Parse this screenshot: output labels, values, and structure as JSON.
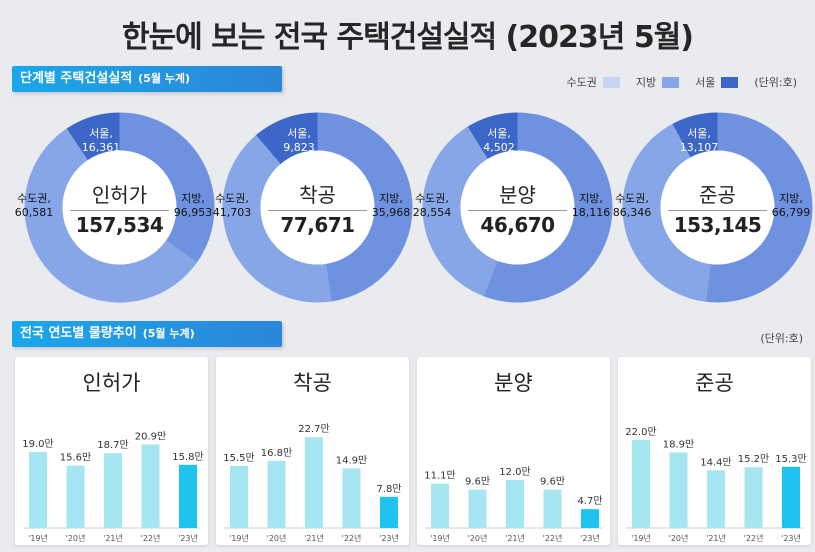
{
  "title": "한눈에 보는 전국 주택건설실적 (2023년 5월)",
  "section1": {
    "title": "단계별 주택건설실적",
    "sub": "(5월 누계)"
  },
  "legend": {
    "items": [
      "수도권",
      "지방",
      "서울"
    ],
    "unit": "(단위:호)"
  },
  "colors": {
    "capital": "#6f92e0",
    "local": "#86a6e8",
    "seoul": "#3d66c9",
    "bar": "#a6e6f2",
    "bar_latest": "#1fc3ef",
    "banner": "#1aa7ea"
  },
  "section2": {
    "title": "전국 연도별 물량추이",
    "sub": "(5월 누계)",
    "unit": "(단위:호)"
  },
  "chart_data": [
    {
      "type": "pie",
      "title": "인허가",
      "total": "157,534",
      "labels": [
        "서울,",
        "수도권,",
        "지방,"
      ],
      "values": [
        16361,
        60581,
        96953
      ],
      "value_labels": [
        "16,361",
        "60,581",
        "96,953"
      ]
    },
    {
      "type": "pie",
      "title": "착공",
      "total": "77,671",
      "labels": [
        "서울,",
        "수도권,",
        "지방,"
      ],
      "values": [
        9823,
        41703,
        35968
      ],
      "value_labels": [
        "9,823",
        "41,703",
        "35,968"
      ]
    },
    {
      "type": "pie",
      "title": "분양",
      "total": "46,670",
      "labels": [
        "서울,",
        "수도권,",
        "지방,"
      ],
      "values": [
        4502,
        28554,
        18116
      ],
      "value_labels": [
        "4,502",
        "28,554",
        "18,116"
      ]
    },
    {
      "type": "pie",
      "title": "준공",
      "total": "153,145",
      "labels": [
        "서울,",
        "수도권,",
        "지방,"
      ],
      "values": [
        13107,
        86346,
        66799
      ],
      "value_labels": [
        "13,107",
        "86,346",
        "66,799"
      ]
    },
    {
      "type": "bar",
      "title": "인허가",
      "categories": [
        "'19년",
        "'20년",
        "'21년",
        "'22년",
        "'23년"
      ],
      "values": [
        19.0,
        15.6,
        18.7,
        20.9,
        15.8
      ],
      "value_labels": [
        "19.0만",
        "15.6만",
        "18.7만",
        "20.9만",
        "15.8만"
      ]
    },
    {
      "type": "bar",
      "title": "착공",
      "categories": [
        "'19년",
        "'20년",
        "'21년",
        "'22년",
        "'23년"
      ],
      "values": [
        15.5,
        16.8,
        22.7,
        14.9,
        7.8
      ],
      "value_labels": [
        "15.5만",
        "16.8만",
        "22.7만",
        "14.9만",
        "7.8만"
      ]
    },
    {
      "type": "bar",
      "title": "분양",
      "categories": [
        "'19년",
        "'20년",
        "'21년",
        "'22년",
        "'23년"
      ],
      "values": [
        11.1,
        9.6,
        12.0,
        9.6,
        4.7
      ],
      "value_labels": [
        "11.1만",
        "9.6만",
        "12.0만",
        "9.6만",
        "4.7만"
      ]
    },
    {
      "type": "bar",
      "title": "준공",
      "categories": [
        "'19년",
        "'20년",
        "'21년",
        "'22년",
        "'23년"
      ],
      "values": [
        22.0,
        18.9,
        14.4,
        15.2,
        15.3
      ],
      "value_labels": [
        "22.0만",
        "18.9만",
        "14.4만",
        "15.2만",
        "15.3만"
      ]
    }
  ]
}
